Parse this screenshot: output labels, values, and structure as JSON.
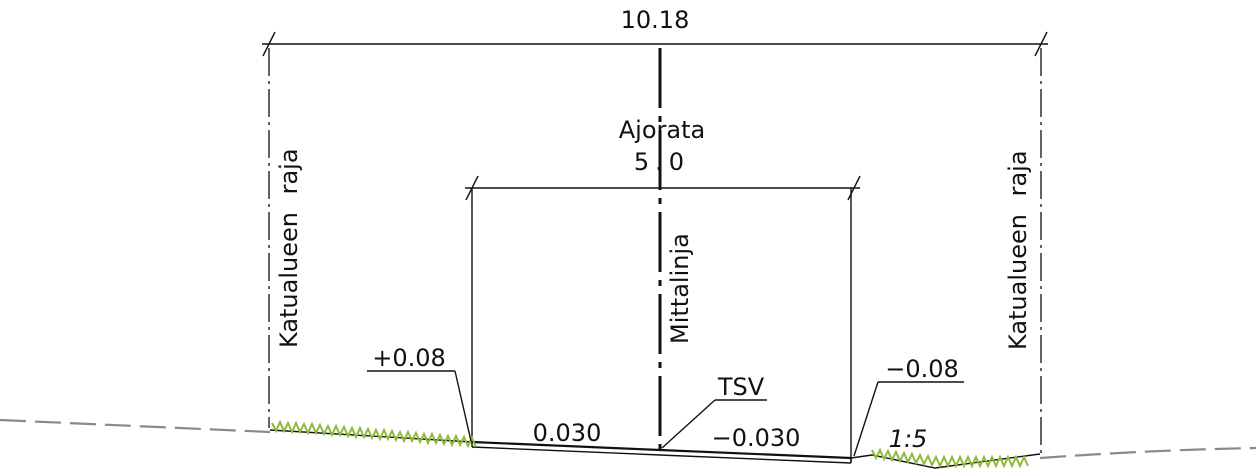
{
  "dimensions": {
    "overall_width": "10.18",
    "roadway_width": "5.0"
  },
  "labels": {
    "roadway": "Ajorata",
    "street_boundary_left": "Katualueen raja",
    "street_boundary_right": "Katualueen raja",
    "measurement_line": "Mittalinja",
    "tsv": "TSV"
  },
  "elevations": {
    "left_edge": "+0.08",
    "right_edge": "−0.08"
  },
  "slopes": {
    "left_lane": "0.030",
    "right_lane": "−0.030",
    "ditch": "1:5"
  },
  "colors": {
    "lines": "#111111",
    "ground": "#8a8a8a",
    "grass": "#8dbb3a"
  }
}
